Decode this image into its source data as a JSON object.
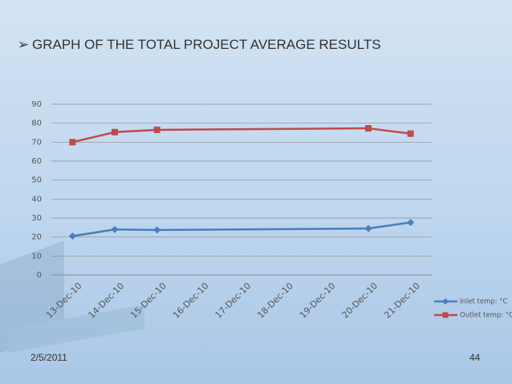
{
  "slide": {
    "title": "GRAPH OF THE TOTAL PROJECT AVERAGE RESULTS",
    "date": "2/5/2011",
    "page": "44"
  },
  "chart_data": {
    "type": "line",
    "categories": [
      "13-Dec-10",
      "14-Dec-10",
      "15-Dec-10",
      "16-Dec-10",
      "17-Dec-10",
      "18-Dec-10",
      "19-Dec-10",
      "20-Dec-10",
      "21-Dec-10"
    ],
    "series": [
      {
        "name": "Inlet temp: °C",
        "color": "#4a7ebb",
        "marker": "diamond",
        "values": [
          20.5,
          24,
          23.7,
          null,
          null,
          null,
          null,
          24.5,
          27.7
        ]
      },
      {
        "name": "Outlet temp: °C",
        "color": "#be4b48",
        "marker": "square",
        "values": [
          70,
          75.3,
          76.5,
          null,
          null,
          null,
          null,
          77.3,
          74.5
        ]
      }
    ],
    "ylim": [
      0,
      90
    ],
    "yticks": [
      0,
      10,
      20,
      30,
      40,
      50,
      60,
      70,
      80,
      90
    ],
    "grid": true,
    "connect_gaps": true,
    "legend": "right"
  }
}
